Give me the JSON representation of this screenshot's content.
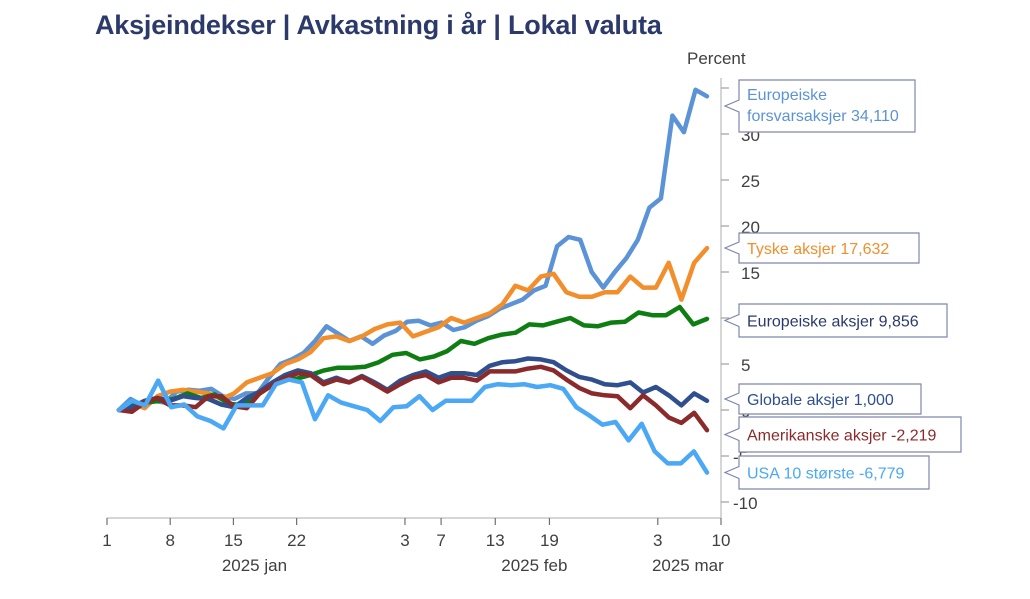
{
  "chart_data": {
    "type": "line",
    "title": "Aksjeindekser | Avkastning i år | Lokal valuta",
    "ylabel": "Percent",
    "xlabel": "",
    "ylim": [
      -11,
      36
    ],
    "yticks": [
      -10,
      -5,
      0,
      5,
      10,
      15,
      20,
      25,
      30
    ],
    "ytick_labels": [
      "-10",
      "-5",
      "0",
      "5",
      "10",
      "15",
      "20",
      "25",
      "30"
    ],
    "x_day_range": [
      1,
      69
    ],
    "xticks": [
      {
        "day": 1,
        "label": "1"
      },
      {
        "day": 8,
        "label": "8"
      },
      {
        "day": 15,
        "label": "15"
      },
      {
        "day": 22,
        "label": "22"
      },
      {
        "day": 34,
        "label": "3"
      },
      {
        "day": 38,
        "label": "7"
      },
      {
        "day": 44,
        "label": "13"
      },
      {
        "day": 50,
        "label": "19"
      },
      {
        "day": 62,
        "label": "3"
      },
      {
        "day": 69,
        "label": "10"
      }
    ],
    "month_labels": [
      {
        "day": 16,
        "label": "2025 jan"
      },
      {
        "day": 47,
        "label": "2025 feb"
      },
      {
        "day": 64,
        "label": "2025 mar"
      }
    ],
    "grid": false,
    "legend": "callouts-right",
    "x": [
      1,
      2,
      3,
      4,
      5,
      6,
      7,
      8,
      9,
      10,
      11,
      12,
      13,
      14,
      15,
      16,
      17,
      18,
      19,
      20,
      21,
      22,
      23,
      24,
      25,
      26,
      27,
      28,
      29,
      30,
      31,
      32,
      33,
      34,
      35,
      36,
      37,
      38,
      39,
      40,
      41,
      42,
      43,
      44,
      45,
      46,
      47,
      48,
      49,
      50,
      51,
      52,
      53,
      54,
      55,
      56,
      57,
      58,
      59,
      60,
      61,
      62,
      63,
      64,
      65,
      66,
      67
    ],
    "series": [
      {
        "name": "Europeiske forsvarsaksjer",
        "label": "Europeiske\nforsvarsaksjer 34,110",
        "last_value": "34,110",
        "color": "#5b93d6",
        "values": [
          0,
          1.2,
          0.5,
          1.0,
          0.8,
          2.0,
          2.2,
          2.1,
          2.3,
          1.5,
          1.2,
          1.8,
          1.8,
          3.5,
          5.0,
          5.5,
          6.2,
          7.5,
          9.1,
          8.3,
          7.5,
          8.0,
          7.2,
          8.1,
          8.6,
          9.6,
          9.7,
          9.2,
          9.5,
          8.7,
          9.0,
          9.7,
          10.2,
          11.0,
          11.5,
          12.0,
          13.0,
          13.5,
          17.8,
          18.8,
          18.5,
          15.0,
          13.3,
          15.0,
          16.5,
          18.5,
          22.0,
          23.0,
          32.0,
          30.2,
          34.8,
          34.1,
          34.1,
          34.1,
          34.1,
          34.1,
          34.1,
          34.1,
          34.1,
          34.1,
          34.1,
          34.1,
          34.1,
          34.1,
          34.1,
          34.1,
          34.1
        ]
      },
      {
        "name": "Tyske aksjer",
        "label": "Tyske aksjer 17,632",
        "last_value": "17,632",
        "color": "#f28e2b",
        "values": [
          0,
          0.8,
          0.2,
          1.5,
          2.0,
          2.2,
          2.0,
          1.8,
          1.2,
          1.8,
          3.0,
          3.5,
          4.0,
          5.0,
          5.5,
          6.3,
          7.8,
          8.0,
          7.5,
          8.0,
          8.8,
          9.3,
          9.5,
          8.0,
          8.5,
          9.0,
          10.0,
          9.5,
          10.0,
          10.5,
          11.5,
          13.5,
          13.0,
          14.5,
          14.8,
          12.8,
          12.3,
          12.3,
          12.8,
          12.8,
          14.5,
          13.3,
          13.3,
          16.0,
          12.0,
          16.0,
          17.6,
          17.6,
          17.6,
          17.6,
          17.6,
          17.6,
          17.6,
          17.6,
          17.6,
          17.6,
          17.6,
          17.6,
          17.6,
          17.6,
          17.6,
          17.6,
          17.6,
          17.6,
          17.6,
          17.6,
          17.6
        ]
      },
      {
        "name": "Europeiske aksjer",
        "label": "Europeiske aksjer 9,856",
        "last_value": "9,856",
        "color": "#0e7d12",
        "values": [
          0,
          0.5,
          0.8,
          1.0,
          1.2,
          1.8,
          1.3,
          1.7,
          0.7,
          0.5,
          1.5,
          2.5,
          3.3,
          3.4,
          3.8,
          4.3,
          4.6,
          4.6,
          4.7,
          5.2,
          6.0,
          6.2,
          5.5,
          5.8,
          6.4,
          7.5,
          7.2,
          7.8,
          8.2,
          8.4,
          9.3,
          9.2,
          9.6,
          10.0,
          9.2,
          9.1,
          9.5,
          9.6,
          10.6,
          10.3,
          10.3,
          11.2,
          9.3,
          9.9,
          9.9,
          9.9,
          9.9,
          9.9,
          9.9,
          9.9,
          9.9,
          9.9,
          9.9,
          9.9,
          9.9,
          9.9,
          9.9,
          9.9,
          9.9,
          9.9,
          9.9,
          9.9,
          9.9,
          9.9,
          9.9,
          9.9,
          9.9
        ]
      },
      {
        "name": "Globale aksjer",
        "label": "Globale aksjer 1,000",
        "last_value": "1,000",
        "color": "#2f4f8f",
        "values": [
          0,
          0.3,
          1.0,
          1.3,
          1.0,
          1.5,
          1.3,
          1.2,
          0.6,
          0.3,
          1.3,
          2.0,
          3.0,
          3.8,
          4.3,
          4.0,
          3.0,
          3.5,
          3.0,
          3.7,
          3.0,
          2.2,
          3.2,
          3.8,
          4.2,
          3.5,
          4.0,
          4.0,
          3.8,
          4.8,
          5.2,
          5.3,
          5.6,
          5.5,
          5.2,
          4.3,
          3.6,
          3.3,
          2.8,
          2.7,
          3.0,
          1.9,
          2.5,
          1.6,
          0.5,
          1.8,
          1.0,
          1.0,
          1.0,
          1.0,
          1.0,
          1.0,
          1.0,
          1.0,
          1.0,
          1.0,
          1.0,
          1.0,
          1.0,
          1.0,
          1.0,
          1.0,
          1.0,
          1.0,
          1.0,
          1.0,
          1.0
        ]
      },
      {
        "name": "Amerikanske aksjer",
        "label": "Amerikanske aksjer -2,219",
        "last_value": "-2,219",
        "color": "#8b2a2a",
        "values": [
          0,
          -0.2,
          0.8,
          1.3,
          0.5,
          0.5,
          0.3,
          1.5,
          1.5,
          0.4,
          0.2,
          1.8,
          2.7,
          3.5,
          4.0,
          3.8,
          2.8,
          3.3,
          3.0,
          3.6,
          2.8,
          2.0,
          2.8,
          3.5,
          3.8,
          3.0,
          3.5,
          3.5,
          3.2,
          4.2,
          4.2,
          4.2,
          4.5,
          4.7,
          4.3,
          3.3,
          2.4,
          1.8,
          1.6,
          1.5,
          0.2,
          1.6,
          0.5,
          -0.8,
          -1.4,
          -0.3,
          -2.2,
          -2.2,
          -2.2,
          -2.2,
          -2.2,
          -2.2,
          -2.2,
          -2.2,
          -2.2,
          -2.2,
          -2.2,
          -2.2,
          -2.2,
          -2.2,
          -2.2,
          -2.2,
          -2.2,
          -2.2,
          -2.2,
          -2.2,
          -2.2
        ]
      },
      {
        "name": "USA 10 største",
        "label": "USA 10 største -6,779",
        "last_value": "-6,779",
        "color": "#4aa8f5",
        "values": [
          0,
          1.0,
          0.5,
          3.2,
          0.3,
          0.6,
          -0.7,
          -1.2,
          -2.0,
          0.5,
          0.5,
          0.5,
          2.8,
          3.3,
          3.0,
          -1.0,
          1.6,
          0.8,
          0.4,
          0.0,
          -1.2,
          0.3,
          0.4,
          1.5,
          0.0,
          1.0,
          1.0,
          1.0,
          2.5,
          2.8,
          2.7,
          2.8,
          2.5,
          2.7,
          2.3,
          0.3,
          -0.6,
          -1.6,
          -1.3,
          -3.3,
          -1.5,
          -4.5,
          -5.8,
          -5.8,
          -4.5,
          -6.8,
          -6.8,
          -6.8,
          -6.8,
          -6.8,
          -6.8,
          -6.8,
          -6.8,
          -6.8,
          -6.8,
          -6.8,
          -6.8,
          -6.8,
          -6.8,
          -6.8,
          -6.8,
          -6.8,
          -6.8,
          -6.8,
          -6.8,
          -6.8,
          -6.8
        ]
      }
    ]
  }
}
